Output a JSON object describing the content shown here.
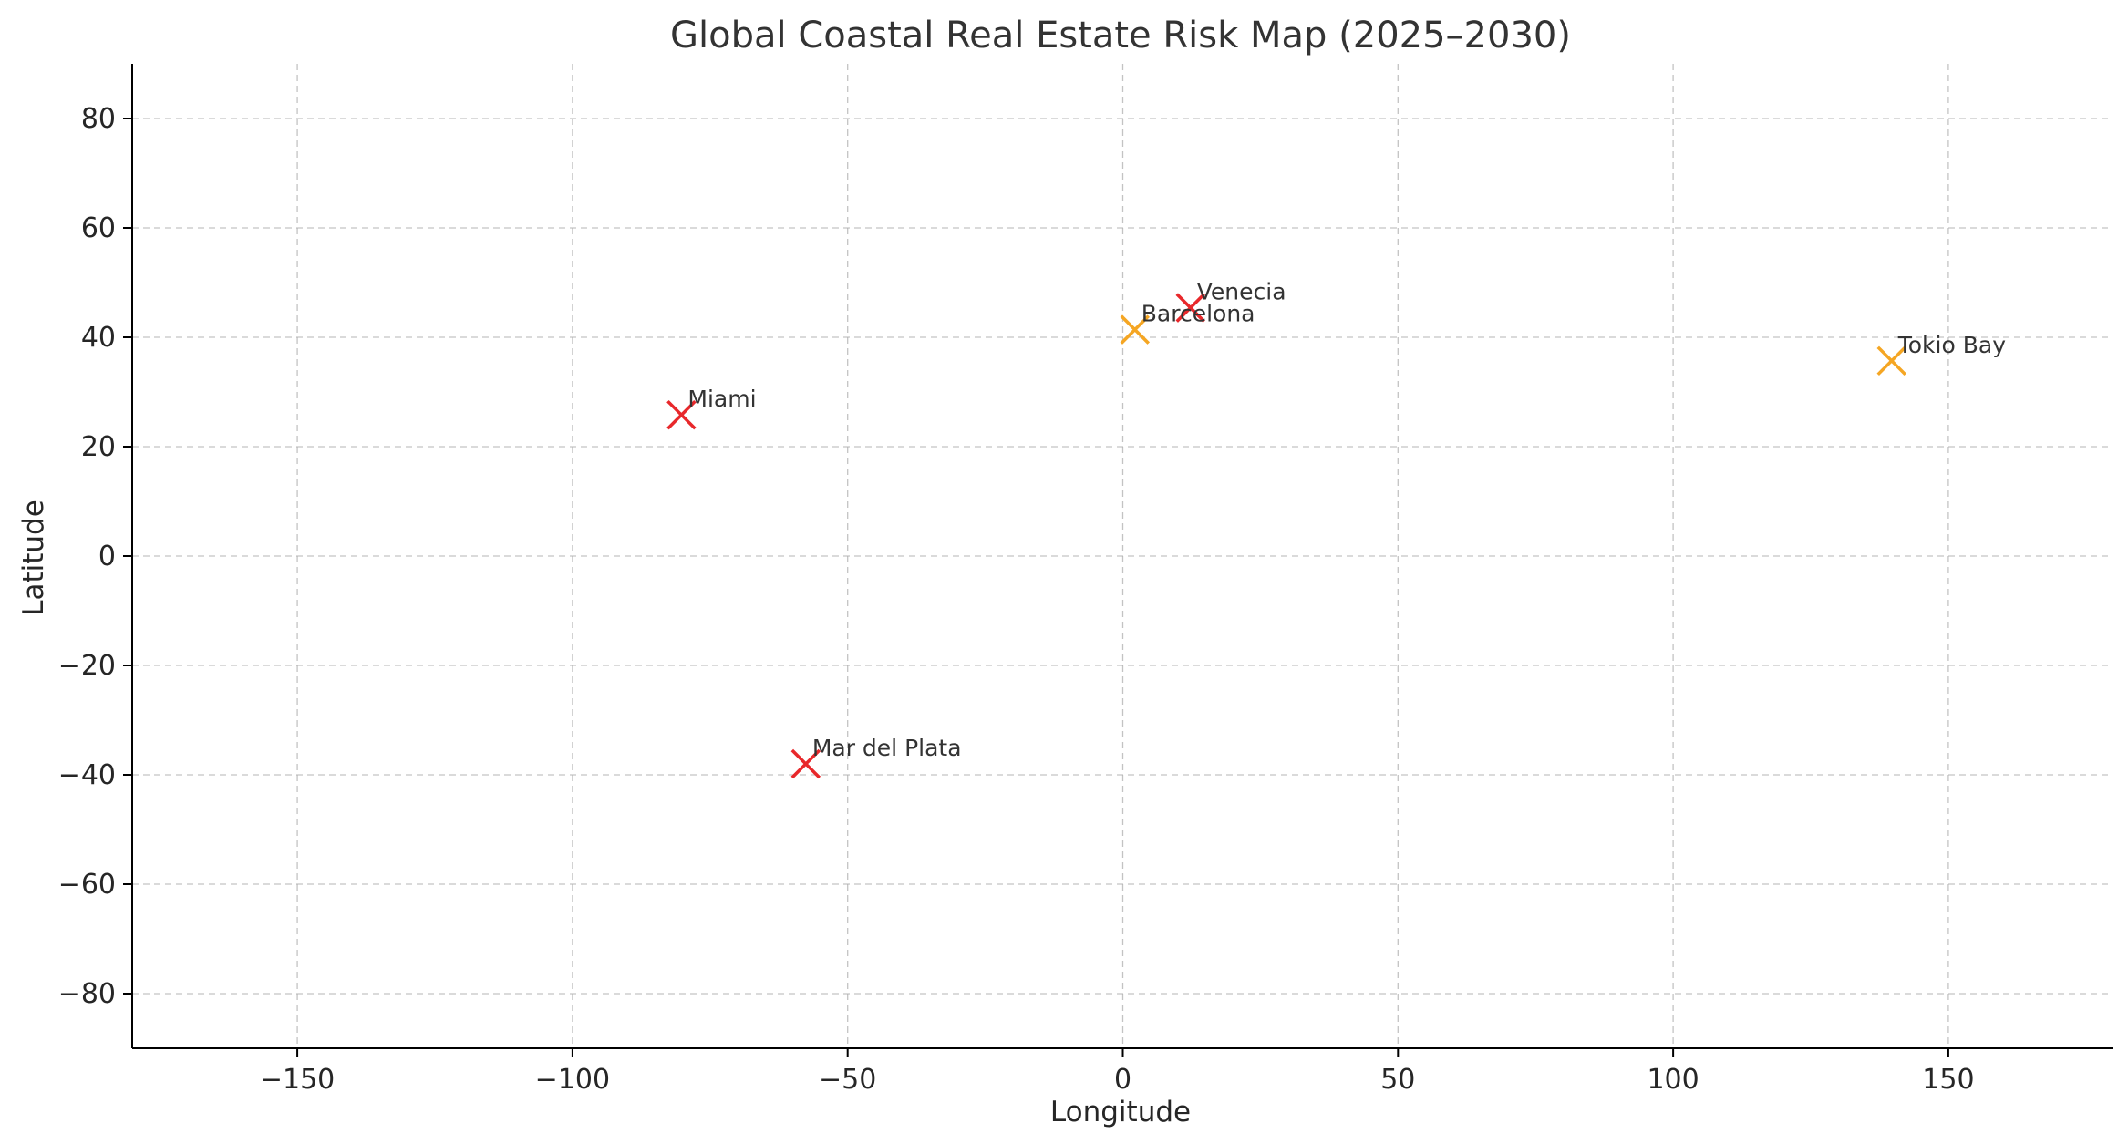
{
  "chart_data": {
    "type": "scatter",
    "title": "Global Coastal Real Estate Risk Map (2025–2030)",
    "xlabel": "Longitude",
    "ylabel": "Latitude",
    "xlim": [
      -180,
      180
    ],
    "ylim": [
      -90,
      90
    ],
    "xticks": [
      -150,
      -100,
      -50,
      0,
      50,
      100,
      150
    ],
    "yticks": [
      -80,
      -60,
      -40,
      -20,
      0,
      20,
      40,
      60,
      80
    ],
    "grid": true,
    "marker": "x",
    "points": [
      {
        "label": "Miami",
        "x": -80.2,
        "y": 25.8,
        "color": "#e8282b"
      },
      {
        "label": "Venecia",
        "x": 12.3,
        "y": 45.4,
        "color": "#e8282b"
      },
      {
        "label": "Barcelona",
        "x": 2.2,
        "y": 41.4,
        "color": "#f5a623"
      },
      {
        "label": "Tokio Bay",
        "x": 139.7,
        "y": 35.7,
        "color": "#f5a623"
      },
      {
        "label": "Mar del Plata",
        "x": -57.6,
        "y": -38.0,
        "color": "#e8282b"
      }
    ]
  }
}
